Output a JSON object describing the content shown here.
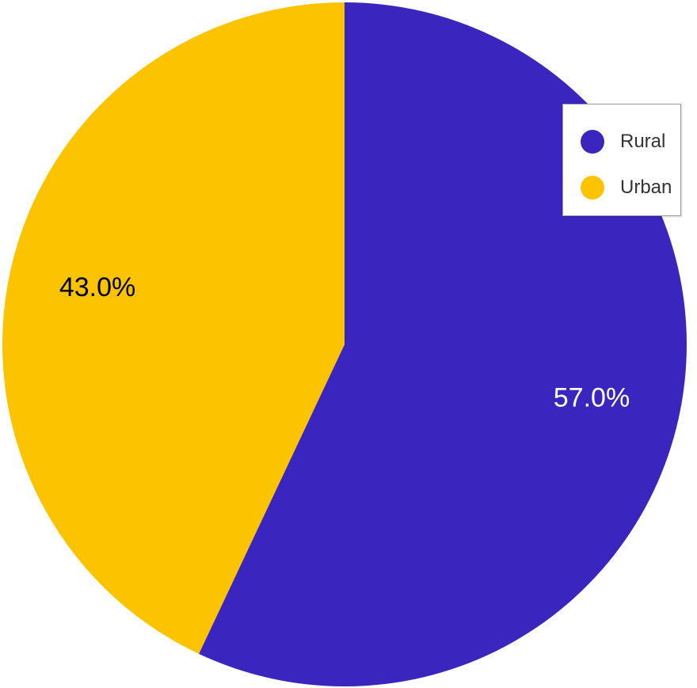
{
  "chart_data": {
    "type": "pie",
    "categories": [
      "Rural",
      "Urban"
    ],
    "values": [
      57.0,
      43.0
    ],
    "slice_labels": [
      "57.0%",
      "43.0%"
    ],
    "colors": [
      "#3a25bf",
      "#fcc400"
    ],
    "label_colors": [
      "#ffffff",
      "#000000"
    ],
    "start_angle": "12 o'clock",
    "direction": "clockwise",
    "legend": {
      "placement": "top-right",
      "entries": [
        "Rural",
        "Urban"
      ]
    }
  }
}
